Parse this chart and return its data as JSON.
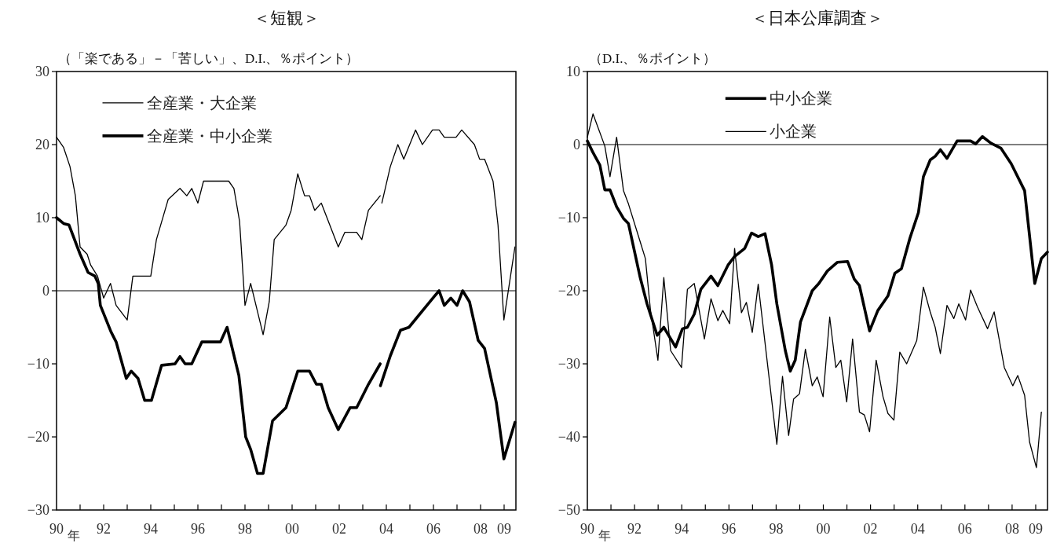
{
  "chart_data": [
    {
      "type": "line",
      "title": "＜短観＞",
      "subtitle": "（「楽である」－「苦しい」、D.I.、％ポイント）",
      "annotations": [
        "年"
      ],
      "legend": "top left",
      "grid": false,
      "xlim": [
        1990,
        2009.5
      ],
      "ylim": [
        -30,
        30
      ],
      "yticks": [
        -30,
        -20,
        -10,
        0,
        10,
        20,
        30
      ],
      "xticks": [
        {
          "value": 1990,
          "label": "90"
        },
        {
          "value": 1991,
          "label": null
        },
        {
          "value": 1992,
          "label": "92"
        },
        {
          "value": 1993,
          "label": null
        },
        {
          "value": 1994,
          "label": "94"
        },
        {
          "value": 1995,
          "label": null
        },
        {
          "value": 1996,
          "label": "96"
        },
        {
          "value": 1997,
          "label": null
        },
        {
          "value": 1998,
          "label": "98"
        },
        {
          "value": 1999,
          "label": null
        },
        {
          "value": 2000,
          "label": "00"
        },
        {
          "value": 2001,
          "label": null
        },
        {
          "value": 2002,
          "label": "02"
        },
        {
          "value": 2003,
          "label": null
        },
        {
          "value": 2004,
          "label": "04"
        },
        {
          "value": 2005,
          "label": null
        },
        {
          "value": 2006,
          "label": "06"
        },
        {
          "value": 2007,
          "label": null
        },
        {
          "value": 2008,
          "label": "08"
        },
        {
          "value": 2009,
          "label": "09"
        }
      ],
      "ref_lines": [
        {
          "axis": "y",
          "value": 0,
          "color": "#000000"
        }
      ],
      "series": [
        {
          "name": "全産業・大企業",
          "color": "#000000",
          "x": [
            1990.0,
            1990.3,
            1990.57,
            1990.8,
            1991.0,
            1991.3,
            1991.45,
            1991.74,
            1992.0,
            1992.29,
            1992.53,
            1993.0,
            1993.24,
            1994.0,
            1994.24,
            1994.74,
            1995.24,
            1995.53,
            1995.74,
            1996.0,
            1996.24,
            1997.31,
            1997.53,
            1997.77,
            1998.0,
            1998.24,
            1998.77,
            1999.03,
            1999.24,
            1999.74,
            1999.96,
            2000.24,
            2000.53,
            2000.74,
            2000.96,
            2001.24,
            2001.96,
            2002.24,
            2002.74,
            2002.96,
            2003.24,
            2003.74
          ],
          "values": [
            21,
            19.6,
            17,
            13,
            6,
            5,
            3.5,
            2,
            -1,
            1,
            -2,
            -4,
            2,
            2,
            7,
            12.5,
            14,
            13,
            14,
            12,
            15,
            15,
            14,
            9.5,
            -2,
            1,
            -6,
            -1.5,
            7,
            9,
            11,
            16,
            13,
            13,
            11,
            12,
            6,
            8,
            8,
            7,
            11,
            13
          ]
        },
        {
          "name": "全産業・中小企業",
          "color": "#000000",
          "x": [
            1990.0,
            1990.3,
            1990.53,
            1991.0,
            1991.34,
            1991.63,
            1991.77,
            1991.86,
            1992.31,
            1992.53,
            1992.96,
            1993.17,
            1993.46,
            1993.74,
            1994.03,
            1994.46,
            1995.03,
            1995.24,
            1995.46,
            1995.74,
            1996.17,
            1996.96,
            1997.24,
            1997.74,
            1998.03,
            1998.24,
            1998.53,
            1998.77,
            1999.17,
            1999.74,
            2000.24,
            2000.74,
            2001.03,
            2001.24,
            2001.53,
            2001.96,
            2002.46,
            2002.74,
            2003.24,
            2003.74
          ],
          "values": [
            10,
            9.2,
            9,
            5,
            2.5,
            2,
            1,
            -2,
            -5.6,
            -7,
            -12,
            -11,
            -12,
            -15,
            -15,
            -10.2,
            -10,
            -9,
            -10,
            -10,
            -7,
            -7,
            -5,
            -11.6,
            -20,
            -21.7,
            -25,
            -25,
            -17.8,
            -16,
            -11,
            -11,
            -12.8,
            -12.8,
            -16,
            -19,
            -16,
            -16,
            -12.8,
            -10
          ]
        },
        {
          "color": "#000000",
          "x": [
            2003.81,
            2004.17,
            2004.49,
            2004.74,
            2005.24,
            2005.53,
            2005.96,
            2006.24,
            2006.46,
            2006.96,
            2007.2,
            2007.74,
            2007.96,
            2008.17,
            2008.53,
            2008.74,
            2008.99,
            2009.46
          ],
          "values": [
            12,
            17,
            20,
            18,
            22,
            20,
            22,
            22,
            21,
            21,
            22,
            20,
            18,
            18,
            15,
            9,
            -4,
            6
          ]
        },
        {
          "color": "#000000",
          "x": [
            2003.75,
            2004.17,
            2004.6,
            2004.96,
            2006.03,
            2006.24,
            2006.46,
            2006.74,
            2007.0,
            2007.24,
            2007.53,
            2007.9,
            2008.17,
            2008.67,
            2008.99,
            2009.46
          ],
          "values": [
            -13,
            -8.9,
            -5.4,
            -5,
            -0.8,
            0,
            -2,
            -1,
            -2,
            0,
            -1.5,
            -6.8,
            -7.9,
            -15.3,
            -23,
            -18
          ]
        }
      ]
    },
    {
      "type": "line",
      "title": "＜日本公庫調査＞",
      "subtitle": "（D.I.、％ポイント）",
      "annotations": [
        "年"
      ],
      "legend": "top",
      "grid": false,
      "xlim": [
        1990,
        2009.5
      ],
      "ylim": [
        -50,
        10
      ],
      "yticks": [
        -50,
        -40,
        -30,
        -20,
        -10,
        0,
        10
      ],
      "xticks": [
        {
          "value": 1990,
          "label": "90"
        },
        {
          "value": 1991,
          "label": null
        },
        {
          "value": 1992,
          "label": "92"
        },
        {
          "value": 1993,
          "label": null
        },
        {
          "value": 1994,
          "label": "94"
        },
        {
          "value": 1995,
          "label": null
        },
        {
          "value": 1996,
          "label": "96"
        },
        {
          "value": 1997,
          "label": null
        },
        {
          "value": 1998,
          "label": "98"
        },
        {
          "value": 1999,
          "label": null
        },
        {
          "value": 2000,
          "label": "00"
        },
        {
          "value": 2001,
          "label": null
        },
        {
          "value": 2002,
          "label": "02"
        },
        {
          "value": 2003,
          "label": null
        },
        {
          "value": 2004,
          "label": "04"
        },
        {
          "value": 2005,
          "label": null
        },
        {
          "value": 2006,
          "label": "06"
        },
        {
          "value": 2007,
          "label": null
        },
        {
          "value": 2008,
          "label": "08"
        },
        {
          "value": 2009,
          "label": "09"
        }
      ],
      "ref_lines": [
        {
          "axis": "y",
          "value": 0,
          "color": "#000000"
        }
      ],
      "series": [
        {
          "name": "中小企業",
          "color": "#000000",
          "x": [
            1990.0,
            1990.24,
            1990.53,
            1990.74,
            1990.96,
            1991.24,
            1991.53,
            1991.74,
            1992.24,
            1992.53,
            1992.96,
            1993.24,
            1993.74,
            1994.03,
            1994.24,
            1994.53,
            1994.81,
            1995.24,
            1995.53,
            1995.96,
            1996.24,
            1996.67,
            1996.96,
            1997.24,
            1997.53,
            1997.81,
            1998.03,
            1998.39,
            1998.6,
            1998.81,
            1999.03,
            1999.53,
            1999.81,
            2000.17,
            2000.6,
            2001.03,
            2001.31,
            2001.53,
            2001.96,
            2002.31,
            2002.74,
            2003.03,
            2003.31,
            2003.67,
            2004.03,
            2004.24,
            2004.53,
            2004.74,
            2004.96,
            2005.24,
            2005.67,
            2005.96,
            2006.24,
            2006.46,
            2006.74,
            2007.1,
            2007.53,
            2007.96,
            2008.53,
            2008.96,
            2009.24,
            2009.5
          ],
          "values": [
            0.5,
            -1.1,
            -2.8,
            -6.2,
            -6.2,
            -8.5,
            -10.1,
            -10.8,
            -18.2,
            -21.8,
            -26.1,
            -25,
            -27.7,
            -25.2,
            -25,
            -23.2,
            -19.8,
            -18,
            -19.3,
            -16.5,
            -15.3,
            -14.2,
            -12.1,
            -12.6,
            -12.2,
            -16.5,
            -21.8,
            -28.2,
            -31,
            -29.5,
            -24.3,
            -20,
            -19,
            -17.3,
            -16.1,
            -16,
            -18.4,
            -19.3,
            -25.5,
            -22.7,
            -20.7,
            -17.6,
            -17,
            -12.8,
            -9.3,
            -4.4,
            -2.1,
            -1.6,
            -0.7,
            -1.9,
            0.5,
            0.5,
            0.5,
            0.1,
            1.1,
            0.2,
            -0.5,
            -2.6,
            -6.3,
            -19,
            -15.6,
            -14.7
          ]
        },
        {
          "name": "小企業",
          "color": "#000000",
          "x": [
            1990.0,
            1990.24,
            1990.74,
            1990.96,
            1991.24,
            1991.53,
            1991.74,
            1992.24,
            1992.46,
            1992.67,
            1992.99,
            1993.24,
            1993.53,
            1993.99,
            1994.24,
            1994.53,
            1994.96,
            1995.24,
            1995.53,
            1995.74,
            1996.03,
            1996.24,
            1996.53,
            1996.74,
            1996.99,
            1997.24,
            1998.03,
            1998.27,
            1998.53,
            1998.74,
            1998.99,
            1999.24,
            1999.53,
            1999.74,
            1999.99,
            2000.27,
            2000.53,
            2000.74,
            2000.99,
            2001.24,
            2001.53,
            2001.74,
            2001.96,
            2002.24,
            2002.53,
            2002.74,
            2002.99,
            2003.24,
            2003.53,
            2003.96,
            2004.24,
            2004.53,
            2004.74,
            2004.96,
            2005.24,
            2005.53,
            2005.74,
            2006.03,
            2006.24,
            2006.53,
            2006.96,
            2007.24,
            2007.67,
            2008.03,
            2008.24,
            2008.53,
            2008.74,
            2009.03,
            2009.24
          ],
          "values": [
            1,
            4.2,
            -0.2,
            -4.4,
            1,
            -6.3,
            -8.1,
            -13.3,
            -15.6,
            -22.5,
            -29.5,
            -18.2,
            -28.2,
            -30.5,
            -19.8,
            -19,
            -26.6,
            -21.1,
            -24.1,
            -22.7,
            -24.5,
            -14.2,
            -23,
            -21.6,
            -25.7,
            -19.1,
            -41,
            -31.7,
            -39.8,
            -34.8,
            -34.1,
            -28,
            -33,
            -31.8,
            -34.5,
            -23.6,
            -30.5,
            -29.5,
            -35.2,
            -26.6,
            -36.6,
            -37,
            -39.3,
            -29.5,
            -34.5,
            -36.8,
            -37.7,
            -28.4,
            -30,
            -26.8,
            -19.5,
            -22.9,
            -25,
            -28.6,
            -22,
            -23.8,
            -21.8,
            -24,
            -19.9,
            -22.2,
            -25.2,
            -22.9,
            -30.5,
            -33,
            -31.6,
            -34.3,
            -40.7,
            -44.2,
            -36.6
          ]
        }
      ]
    }
  ]
}
